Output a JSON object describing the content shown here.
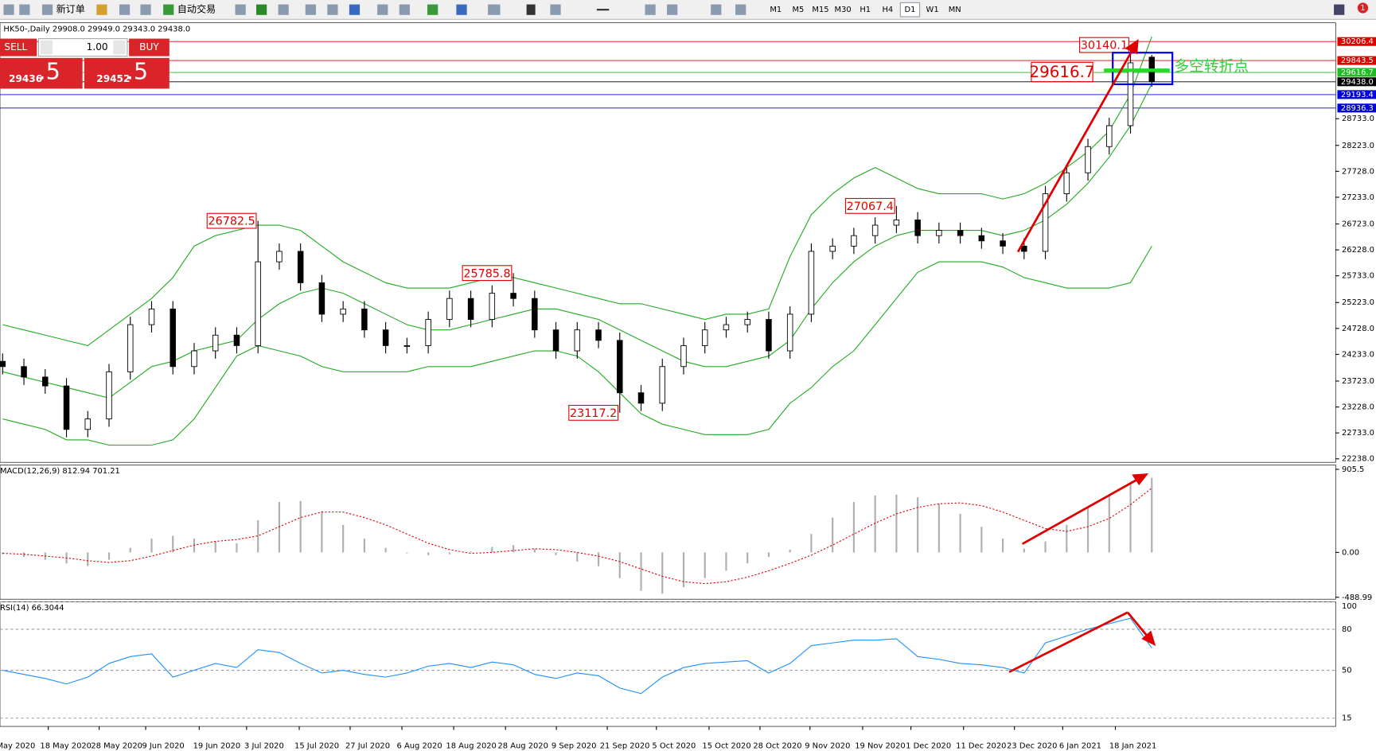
{
  "toolbar": {
    "new_order": "新订单",
    "auto_trading": "自动交易",
    "timeframes": [
      "M1",
      "M5",
      "M15",
      "M30",
      "H1",
      "H4",
      "D1",
      "W1",
      "MN"
    ],
    "active_timeframe": "D1",
    "notifications": "1"
  },
  "trade_panel": {
    "sell": "SELL",
    "lots": "1.00",
    "buy": "BUY",
    "sell_price": "29436",
    "sell_fraction": ".5",
    "buy_price": "29452",
    "buy_fraction": ".5"
  },
  "chart_data": {
    "type": "candlestick",
    "title": "HK50-,Daily  29908.0 29949.0 29343.0 29438.0",
    "open": [
      24100,
      24000,
      23800,
      23630,
      22800,
      23000,
      23900,
      24800,
      25100,
      24000,
      24300,
      24600,
      24400,
      26000,
      26200,
      25600,
      25000,
      25100,
      24700,
      24400,
      24400,
      24900,
      25300,
      24900,
      25400,
      25300,
      24700,
      24300,
      24700,
      24500,
      23500,
      23300,
      24000,
      24400,
      24700,
      24800,
      24900,
      24300,
      25000,
      26200,
      26300,
      26500,
      26700,
      26800,
      26500,
      26600,
      26500,
      26400,
      26300,
      26200,
      27300,
      27700,
      28200,
      28600,
      29908
    ],
    "high": [
      24250,
      24150,
      23950,
      23780,
      23150,
      24050,
      24950,
      25250,
      25250,
      24450,
      24750,
      24750,
      26782.5,
      26350,
      26350,
      25750,
      25250,
      25250,
      24850,
      24550,
      25050,
      25450,
      25450,
      25550,
      25785.8,
      25450,
      24850,
      24850,
      24850,
      24650,
      23650,
      24150,
      24550,
      24850,
      24950,
      25050,
      25050,
      25150,
      26350,
      26450,
      26650,
      26850,
      27067.4,
      26950,
      26750,
      26750,
      26650,
      26550,
      26450,
      27450,
      27850,
      28350,
      28750,
      30140.1,
      29949
    ],
    "low": [
      23850,
      23650,
      23480,
      22650,
      22650,
      22850,
      23750,
      24650,
      23850,
      23850,
      24150,
      24250,
      24250,
      25850,
      25450,
      24850,
      24850,
      24550,
      24250,
      24250,
      24250,
      24750,
      24750,
      24750,
      25150,
      24550,
      24150,
      24150,
      24350,
      23117.2,
      23150,
      23150,
      23850,
      24250,
      24550,
      24650,
      24150,
      24150,
      24850,
      26050,
      26150,
      26350,
      26550,
      26350,
      26350,
      26350,
      26250,
      26150,
      26050,
      26050,
      27150,
      27550,
      28050,
      28450,
      29343
    ],
    "close": [
      24000,
      23800,
      23630,
      22800,
      23000,
      23900,
      24800,
      25100,
      24000,
      24300,
      24600,
      24400,
      26000,
      26200,
      25600,
      25000,
      25100,
      24700,
      24400,
      24400,
      24900,
      25300,
      24900,
      25400,
      25300,
      24700,
      24300,
      24700,
      24500,
      23500,
      23300,
      24000,
      24400,
      24700,
      24800,
      24900,
      24300,
      25000,
      26200,
      26300,
      26500,
      26700,
      26800,
      26500,
      26600,
      26500,
      26400,
      26300,
      26200,
      27300,
      27700,
      28200,
      28600,
      29800,
      29438
    ],
    "bands": {
      "color": "#22aa22",
      "upper": [
        24800,
        24700,
        24600,
        24500,
        24400,
        24700,
        25000,
        25300,
        25700,
        26300,
        26500,
        26600,
        26700,
        26700,
        26600,
        26300,
        26000,
        25800,
        25600,
        25500,
        25500,
        25500,
        25600,
        25700,
        25700,
        25600,
        25500,
        25400,
        25300,
        25200,
        25200,
        25100,
        25000,
        24900,
        25000,
        25000,
        25100,
        26100,
        26900,
        27300,
        27600,
        27800,
        27600,
        27400,
        27300,
        27300,
        27300,
        27200,
        27300,
        27500,
        27800,
        28100,
        28500,
        29200,
        30300
      ],
      "middle": [
        23900,
        23800,
        23700,
        23600,
        23500,
        23400,
        23700,
        24000,
        24100,
        24300,
        24400,
        24500,
        24900,
        25200,
        25400,
        25500,
        25400,
        25200,
        25000,
        24800,
        24700,
        24700,
        24800,
        24900,
        25000,
        25100,
        25100,
        25000,
        24900,
        24700,
        24500,
        24300,
        24100,
        24000,
        24000,
        24100,
        24200,
        24500,
        25100,
        25600,
        26000,
        26300,
        26500,
        26600,
        26600,
        26600,
        26600,
        26500,
        26600,
        26800,
        27100,
        27500,
        28000,
        28600,
        29400
      ],
      "lower": [
        23000,
        22900,
        22800,
        22600,
        22600,
        22500,
        22500,
        22500,
        22600,
        23000,
        23600,
        24200,
        24400,
        24300,
        24200,
        24000,
        23900,
        23900,
        23900,
        23900,
        24000,
        24000,
        24000,
        24100,
        24200,
        24300,
        24300,
        24200,
        23900,
        23500,
        23100,
        22900,
        22800,
        22700,
        22700,
        22700,
        22800,
        23300,
        23600,
        24000,
        24300,
        24800,
        25300,
        25800,
        26000,
        26000,
        26000,
        25900,
        25700,
        25600,
        25500,
        25500,
        25500,
        25600,
        26300
      ]
    },
    "ylim": [
      22171,
      30563
    ],
    "yticks": [
      {
        "value": 22238,
        "label": "22238.0"
      },
      {
        "value": 22733,
        "label": "22733.0"
      },
      {
        "value": 23228,
        "label": "23228.0"
      },
      {
        "value": 23723,
        "label": "23723.0"
      },
      {
        "value": 24233,
        "label": "24233.0"
      },
      {
        "value": 24728,
        "label": "24728.0"
      },
      {
        "value": 25223,
        "label": "25223.0"
      },
      {
        "value": 25733,
        "label": "25733.0"
      },
      {
        "value": 26228,
        "label": "26228.0"
      },
      {
        "value": 26723,
        "label": "26723.0"
      },
      {
        "value": 27233,
        "label": "27233.0"
      },
      {
        "value": 27728,
        "label": "27728.0"
      },
      {
        "value": 28223,
        "label": "28223.0"
      },
      {
        "value": 28733,
        "label": "28733.0"
      }
    ],
    "levels": [
      {
        "value": 30206.4,
        "color": "#e00000"
      },
      {
        "value": 29843.5,
        "color": "#e00000"
      },
      {
        "value": 29616.7,
        "color": "#22bb22"
      },
      {
        "value": 29438,
        "label": "29438.0",
        "color": "#000000"
      },
      {
        "value": 29193.4,
        "color": "#0000dd"
      },
      {
        "value": 28936.3,
        "color": "#0000dd"
      }
    ],
    "annotations": [
      {
        "value": 26782.5,
        "index": 12
      },
      {
        "value": 25785.8,
        "index": 24
      },
      {
        "value": 23117.2,
        "index": 29
      },
      {
        "value": 27067.4,
        "index": 42
      },
      {
        "value": 30140.1,
        "index": 53
      },
      {
        "value": 29616.7,
        "index": 53
      }
    ],
    "annotation_text": "多空转折点",
    "x_labels": [
      "May 2020",
      "18 May 2020",
      "28 May 2020",
      "9 Jun 2020",
      "19 Jun 2020",
      "3 Jul 2020",
      "15 Jul 2020",
      "27 Jul 2020",
      "6 Aug 2020",
      "18 Aug 2020",
      "28 Aug 2020",
      "9 Sep 2020",
      "21 Sep 2020",
      "5 Oct 2020",
      "15 Oct 2020",
      "28 Oct 2020",
      "9 Nov 2020",
      "19 Nov 2020",
      "1 Dec 2020",
      "11 Dec 2020",
      "23 Dec 2020",
      "6 Jan 2021",
      "18 Jan 2021"
    ],
    "macd": {
      "label": "MACD(12,26,9) 812.94 701.21",
      "ylim": [
        -510,
        953
      ],
      "yticks": [
        905.5,
        {
          "value": 0,
          "label": "0.00"
        },
        -488.99
      ],
      "histogram": [
        -20,
        -50,
        -80,
        -120,
        -150,
        -80,
        50,
        150,
        180,
        150,
        120,
        100,
        350,
        550,
        560,
        450,
        300,
        150,
        50,
        -10,
        -30,
        -20,
        10,
        60,
        80,
        40,
        -30,
        -100,
        -150,
        -280,
        -420,
        -450,
        -380,
        -280,
        -200,
        -120,
        -50,
        30,
        200,
        380,
        550,
        620,
        630,
        600,
        530,
        420,
        280,
        150,
        40,
        120,
        300,
        480,
        620,
        760,
        812.94
      ],
      "signal": [
        -10,
        -20,
        -40,
        -60,
        -90,
        -110,
        -90,
        -40,
        20,
        80,
        120,
        140,
        180,
        280,
        380,
        440,
        440,
        380,
        300,
        200,
        100,
        30,
        -10,
        0,
        20,
        40,
        30,
        0,
        -40,
        -100,
        -180,
        -260,
        -320,
        -340,
        -320,
        -270,
        -200,
        -120,
        -30,
        80,
        200,
        320,
        420,
        490,
        530,
        540,
        510,
        440,
        350,
        260,
        230,
        280,
        370,
        520,
        701.21
      ]
    },
    "rsi": {
      "label": "RSI(14) 66.3044",
      "ylim": [
        9,
        100
      ],
      "yticks": [
        100,
        80,
        50,
        15
      ],
      "values": [
        50,
        47,
        44,
        40,
        45,
        55,
        60,
        62,
        45,
        50,
        55,
        52,
        65,
        63,
        55,
        48,
        50,
        47,
        45,
        48,
        53,
        55,
        52,
        56,
        54,
        47,
        44,
        48,
        46,
        37,
        33,
        45,
        52,
        55,
        56,
        57,
        48,
        55,
        68,
        70,
        72,
        72,
        73,
        60,
        58,
        55,
        54,
        52,
        48,
        70,
        75,
        80,
        84,
        88,
        66.3044
      ]
    }
  }
}
